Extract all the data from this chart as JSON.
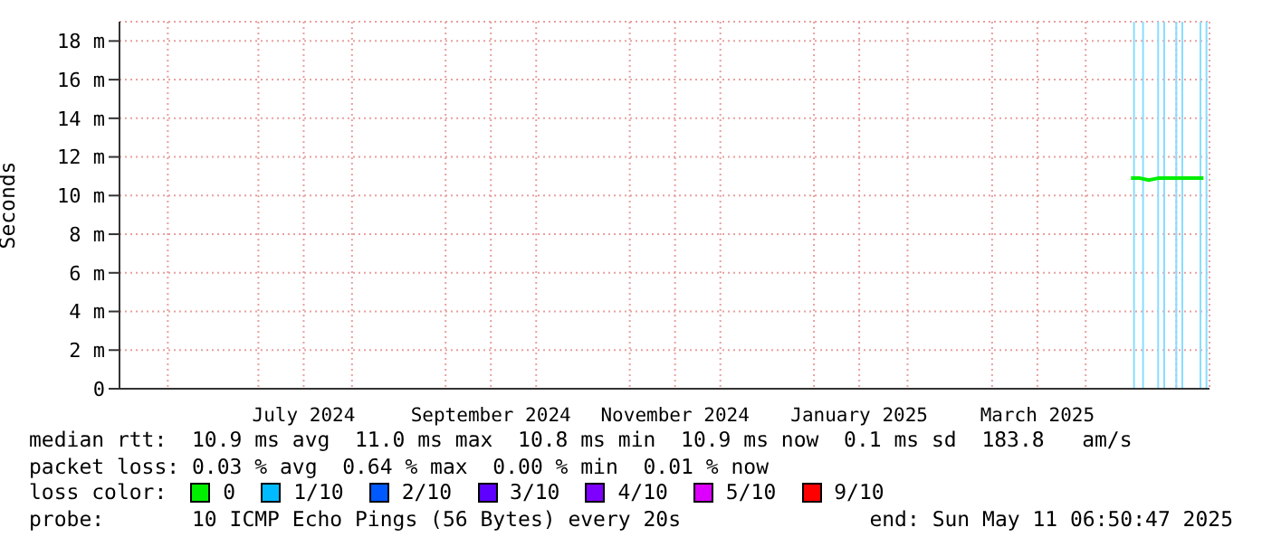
{
  "chart_data": {
    "type": "line",
    "ylabel": "Seconds",
    "x": [
      "2025-04-16",
      "2025-04-19",
      "2025-04-22",
      "2025-04-25",
      "2025-04-28",
      "2025-05-01",
      "2025-05-04",
      "2025-05-07",
      "2025-05-10"
    ],
    "series": [
      {
        "name": "0",
        "color": "#00ee00",
        "values": [
          10.9,
          10.9,
          10.8,
          10.9,
          10.9,
          10.9,
          10.9,
          10.9,
          10.9
        ]
      },
      {
        "name": "1/10",
        "color": "#00bbff",
        "values": [
          null,
          null,
          null,
          null,
          null,
          null,
          null,
          null,
          null
        ]
      },
      {
        "name": "2/10",
        "color": "#0059ff",
        "values": [
          null,
          null,
          null,
          null,
          null,
          null,
          null,
          null,
          null
        ]
      },
      {
        "name": "3/10",
        "color": "#5e00ff",
        "values": [
          null,
          null,
          null,
          null,
          null,
          null,
          null,
          null,
          null
        ]
      },
      {
        "name": "4/10",
        "color": "#7e00ff",
        "values": [
          null,
          null,
          null,
          null,
          null,
          null,
          null,
          null,
          null
        ]
      },
      {
        "name": "5/10",
        "color": "#dd00ff",
        "values": [
          null,
          null,
          null,
          null,
          null,
          null,
          null,
          null,
          null
        ]
      },
      {
        "name": "9/10",
        "color": "#ff0000",
        "values": [
          null,
          null,
          null,
          null,
          null,
          null,
          null,
          null,
          null
        ]
      }
    ],
    "xlim": [
      "2024-05-16",
      "2025-05-12"
    ],
    "xticks": [
      {
        "value": "2024-06-01",
        "label": null
      },
      {
        "value": "2024-07-01",
        "label": null
      },
      {
        "value": "2024-07-16",
        "label": "July 2024"
      },
      {
        "value": "2024-08-01",
        "label": null
      },
      {
        "value": "2024-09-01",
        "label": null
      },
      {
        "value": "2024-09-16",
        "label": "September 2024"
      },
      {
        "value": "2024-10-01",
        "label": null
      },
      {
        "value": "2024-11-01",
        "label": null
      },
      {
        "value": "2024-11-16",
        "label": "November 2024"
      },
      {
        "value": "2024-12-01",
        "label": null
      },
      {
        "value": "2025-01-01",
        "label": null
      },
      {
        "value": "2025-01-16",
        "label": "January 2025"
      },
      {
        "value": "2025-02-01",
        "label": null
      },
      {
        "value": "2025-03-01",
        "label": null
      },
      {
        "value": "2025-03-16",
        "label": "March 2025"
      },
      {
        "value": "2025-04-01",
        "label": null
      },
      {
        "value": "2025-05-01",
        "label": null
      }
    ],
    "ylim": [
      0,
      19
    ],
    "yticks": [
      0,
      {
        "value": 2,
        "label": "2 m"
      },
      {
        "value": 4,
        "label": "4 m"
      },
      {
        "value": 6,
        "label": "6 m"
      },
      {
        "value": 8,
        "label": "8 m"
      },
      {
        "value": 10,
        "label": "10 m"
      },
      {
        "value": 12,
        "label": "12 m"
      },
      {
        "value": 14,
        "label": "14 m"
      },
      {
        "value": 16,
        "label": "16 m"
      },
      {
        "value": 18,
        "label": "18 m"
      }
    ],
    "ref_lines": [
      {
        "axis": "x",
        "value": "2025-04-17",
        "color": "#88ddff"
      },
      {
        "axis": "x",
        "value": "2025-04-20",
        "color": "#88ddff"
      },
      {
        "axis": "x",
        "value": "2025-04-25",
        "color": "#88ddff"
      },
      {
        "axis": "x",
        "value": "2025-04-27",
        "color": "#88ddff"
      },
      {
        "axis": "x",
        "value": "2025-05-01",
        "color": "#88ddff"
      },
      {
        "axis": "x",
        "value": "2025-05-03",
        "color": "#88ddff"
      },
      {
        "axis": "x",
        "value": "2025-05-09",
        "color": "#88ddff"
      },
      {
        "axis": "x",
        "value": "2025-05-11",
        "color": "#88ddff"
      }
    ],
    "grid": true,
    "legend": "bottom",
    "marker": "none",
    "line_style": "solid",
    "annotations": [
      "median rtt:  10.9 ms avg  11.0 ms max  10.8 ms min  10.9 ms now  0.1 ms sd  183.8   am/s",
      "packet loss: 0.03 % avg  0.64 % max  0.00 % min  0.01 % now",
      "loss color:",
      "probe:       10 ICMP Echo Pings (56 Bytes) every 20s",
      "end: Sun May 11 06:50:47 2025"
    ]
  }
}
